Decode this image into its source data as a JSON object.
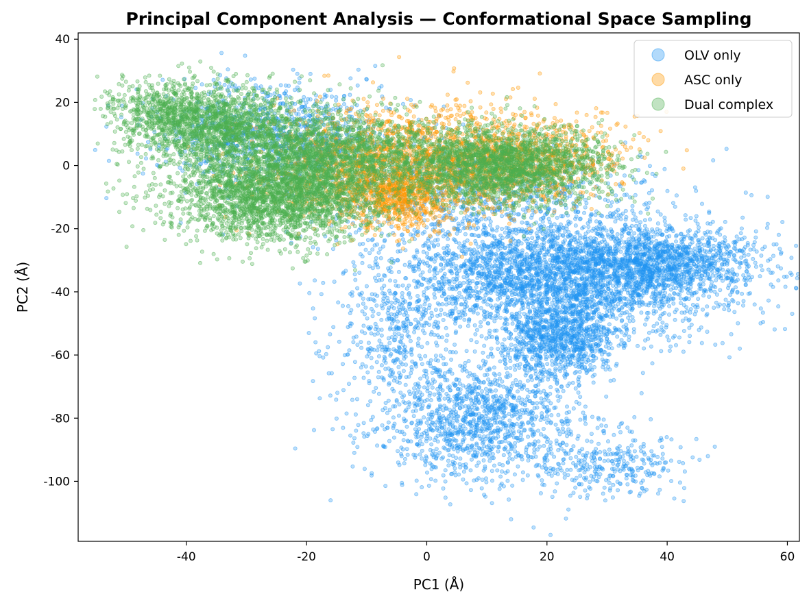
{
  "chart_data": {
    "type": "scatter",
    "title": "Principal Component Analysis — Conformational Space Sampling",
    "xlabel": "PC1 (Å)",
    "ylabel": "PC2 (Å)",
    "xlim": [
      -58,
      62
    ],
    "ylim": [
      -119,
      42
    ],
    "xticks": [
      -40,
      -20,
      0,
      20,
      40,
      60
    ],
    "yticks": [
      40,
      20,
      0,
      -20,
      -40,
      -60,
      -80,
      -100
    ],
    "xtick_labels": [
      "-40",
      "-20",
      "0",
      "20",
      "40",
      "60"
    ],
    "ytick_labels": [
      "40",
      "20",
      "0",
      "-20",
      "-40",
      "-60",
      "-80",
      "-100"
    ],
    "grid": false,
    "legend_position": "top-right",
    "legend": [
      "OLV only",
      "ASC only",
      "Dual complex"
    ],
    "series": [
      {
        "name": "OLV only",
        "color": "#2196f3",
        "clusters": [
          {
            "cx": 22,
            "cy": -35,
            "sx": 14,
            "sy": 9,
            "n": 3200
          },
          {
            "cx": 40,
            "cy": -30,
            "sx": 8,
            "sy": 5,
            "n": 900
          },
          {
            "cx": 22,
            "cy": -55,
            "sx": 5,
            "sy": 6,
            "n": 900
          },
          {
            "cx": 8,
            "cy": -80,
            "sx": 9,
            "sy": 10,
            "n": 1300
          },
          {
            "cx": 30,
            "cy": -95,
            "sx": 6,
            "sy": 5,
            "n": 300
          },
          {
            "cx": -5,
            "cy": -55,
            "sx": 5,
            "sy": 8,
            "n": 300
          },
          {
            "cx": -25,
            "cy": 10,
            "sx": 10,
            "sy": 8,
            "n": 900
          },
          {
            "cx": 10,
            "cy": -10,
            "sx": 14,
            "sy": 8,
            "n": 700
          }
        ]
      },
      {
        "name": "ASC only",
        "color": "#ff9800",
        "clusters": [
          {
            "cx": -5,
            "cy": 0,
            "sx": 11,
            "sy": 9,
            "n": 1600
          },
          {
            "cx": 15,
            "cy": 3,
            "sx": 9,
            "sy": 7,
            "n": 900
          },
          {
            "cx": -5,
            "cy": -10,
            "sx": 4,
            "sy": 5,
            "n": 500
          }
        ]
      },
      {
        "name": "Dual complex",
        "color": "#4caf50",
        "clusters": [
          {
            "cx": -25,
            "cy": -8,
            "sx": 9,
            "sy": 8,
            "n": 2800
          },
          {
            "cx": -35,
            "cy": 13,
            "sx": 7,
            "sy": 6,
            "n": 1500
          },
          {
            "cx": -15,
            "cy": 5,
            "sx": 8,
            "sy": 7,
            "n": 1200
          },
          {
            "cx": 12,
            "cy": 0,
            "sx": 9,
            "sy": 6,
            "n": 2300
          },
          {
            "cx": -45,
            "cy": 18,
            "sx": 4,
            "sy": 5,
            "n": 300
          }
        ]
      }
    ]
  }
}
